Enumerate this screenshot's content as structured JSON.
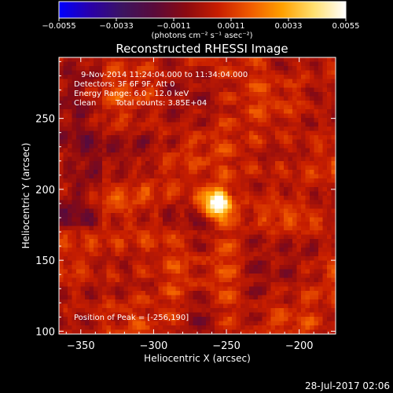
{
  "chart_data": {
    "type": "heatmap",
    "title": "Reconstructed RHESSI Image",
    "xlabel": "Heliocentric X (arcsec)",
    "ylabel": "Heliocentric Y (arcsec)",
    "xlim": [
      -365,
      -175
    ],
    "ylim": [
      98,
      293
    ],
    "x_ticks": [
      {
        "value": -350,
        "label": "−350"
      },
      {
        "value": -300,
        "label": "−300"
      },
      {
        "value": -250,
        "label": "−250"
      },
      {
        "value": -200,
        "label": "−200"
      }
    ],
    "y_ticks": [
      {
        "value": 100,
        "label": "100"
      },
      {
        "value": 150,
        "label": "150"
      },
      {
        "value": 200,
        "label": "200"
      },
      {
        "value": 250,
        "label": "250"
      }
    ],
    "colorbar": {
      "range": [
        -0.0055,
        0.0055
      ],
      "ticks": [
        {
          "value": -0.0055,
          "label": "−0.0055"
        },
        {
          "value": -0.0033,
          "label": "−0.0033"
        },
        {
          "value": -0.0011,
          "label": "−0.0011"
        },
        {
          "value": 0.0011,
          "label": "0.0011"
        },
        {
          "value": 0.0033,
          "label": "0.0033"
        },
        {
          "value": 0.0055,
          "label": "0.0055"
        }
      ],
      "units_label": "(photons cm⁻² s⁻¹ asec⁻²)",
      "colors": [
        "#0000ff",
        "#2a00a8",
        "#3c1460",
        "#5a0a3a",
        "#8c0a10",
        "#c81e00",
        "#f05a00",
        "#ffa000",
        "#ffe070",
        "#ffffff"
      ]
    },
    "annotations": {
      "time_range": "9-Nov-2014 11:24:04.000 to 11:34:04.000",
      "detectors": "Detectors: 3F 6F 9F, Att 0",
      "energy_range": "Energy Range: 6.0 - 12.0 keV",
      "algorithm": "Clean",
      "total_counts": "Total counts: 3.85E+04",
      "peak_position": "Position of Peak = [-256,190]"
    },
    "peak": {
      "x": -256,
      "y": 190,
      "value": 0.0055
    },
    "image_grid": {
      "nx": 64,
      "ny": 64
    }
  },
  "footer": {
    "date": "28-Jul-2017 02:06"
  }
}
